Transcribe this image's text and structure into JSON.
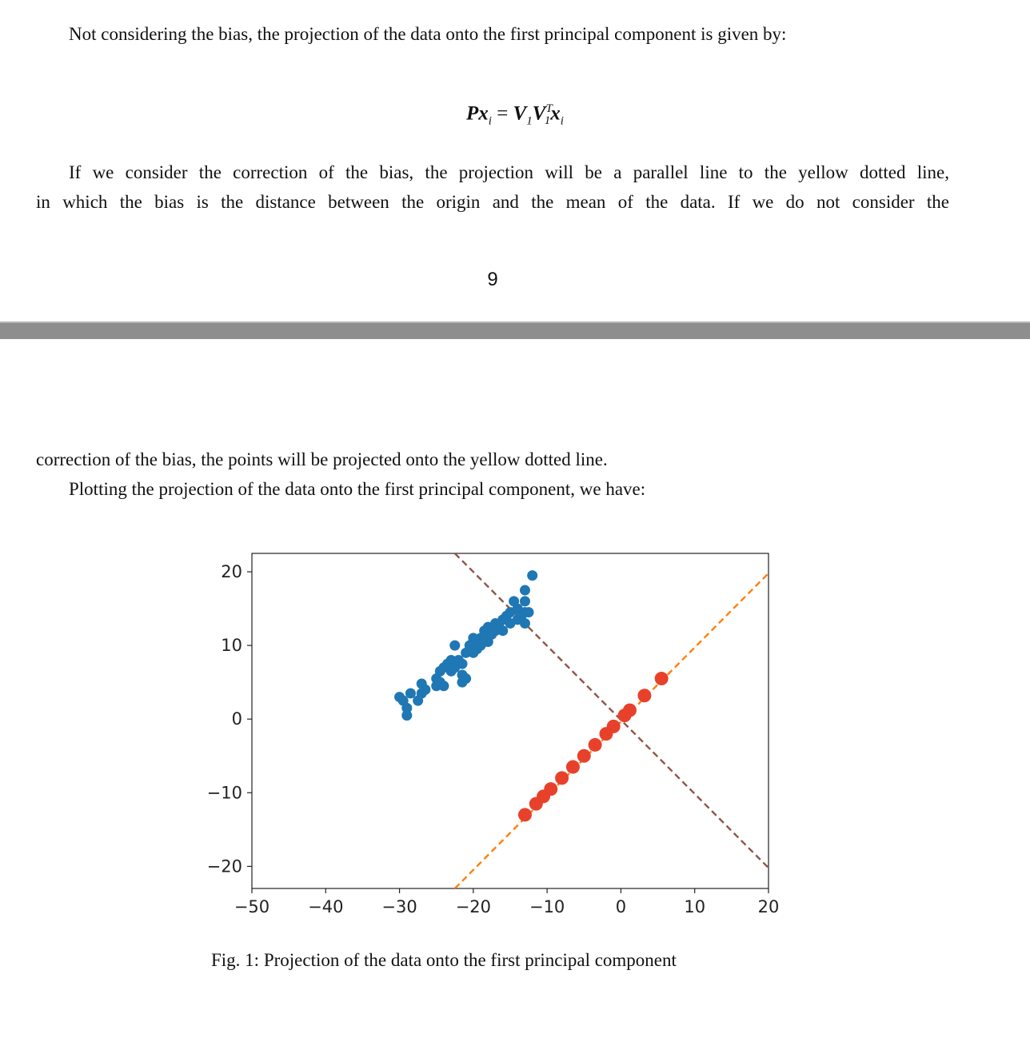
{
  "page_top": {
    "line1": "Not considering the bias, the projection of the data onto the first principal component is given by:",
    "equation": {
      "lhs": "Px",
      "lhs_sub": "i",
      "equals": "=",
      "v1": "V",
      "v1_sub": "1",
      "v2": "V",
      "v2_sup": "T",
      "v2_sub": "1",
      "x": "x",
      "x_sub": "i"
    },
    "para2_line1": "If we consider the correction of the bias, the projection will be a parallel line to the yellow dotted line,",
    "para2_line2": "in which the bias is the distance between the origin and the mean of the data. If we do not consider the",
    "page_number": "9"
  },
  "page_bottom": {
    "para2_cont": "correction of the bias, the points will be projected onto the yellow dotted line.",
    "para3": "Plotting the projection of the data onto the first principal component, we have:",
    "caption": "Fig. 1: Projection of the data onto the first principal component"
  },
  "chart_data": {
    "type": "scatter",
    "xlim": [
      -50,
      20
    ],
    "ylim": [
      -23,
      22.5
    ],
    "xticks": [
      -50,
      -40,
      -30,
      -20,
      -10,
      0,
      10,
      20
    ],
    "yticks": [
      -20,
      -10,
      0,
      10,
      20
    ],
    "xtick_labels": [
      "−50",
      "−40",
      "−30",
      "−20",
      "−10",
      "0",
      "10",
      "20"
    ],
    "ytick_labels": [
      "−20",
      "−10",
      "0",
      "10",
      "20"
    ],
    "grid": false,
    "colors": {
      "data": "#1f77b4",
      "projection": "#e8412b",
      "pc1_line": "#ff7f0e",
      "pc2_line": "#8c564b"
    },
    "lines": [
      {
        "style": "dashed",
        "color": "#ff7f0e",
        "points": [
          [
            -22.5,
            -23
          ],
          [
            20,
            19.8
          ]
        ]
      },
      {
        "style": "dashed",
        "color": "#8c564b",
        "points": [
          [
            -22.5,
            22.5
          ],
          [
            20,
            -20.2
          ]
        ]
      }
    ],
    "series": [
      {
        "marker": "dot",
        "color": "#1f77b4",
        "points": [
          [
            -30,
            3
          ],
          [
            -29.5,
            2.5
          ],
          [
            -28.5,
            3.5
          ],
          [
            -29,
            1.5
          ],
          [
            -29,
            0.5
          ],
          [
            -27,
            4.8
          ],
          [
            -27,
            3.5
          ],
          [
            -27.5,
            2.5
          ],
          [
            -26.5,
            4
          ],
          [
            -25,
            5.5
          ],
          [
            -25,
            4.5
          ],
          [
            -24.5,
            5
          ],
          [
            -24.5,
            6.5
          ],
          [
            -24,
            7
          ],
          [
            -23.5,
            7.5
          ],
          [
            -23,
            6.5
          ],
          [
            -23,
            8
          ],
          [
            -22.5,
            7
          ],
          [
            -22,
            8
          ],
          [
            -21.5,
            7.5
          ],
          [
            -21.5,
            6
          ],
          [
            -21,
            5.5
          ],
          [
            -21,
            9
          ],
          [
            -20.5,
            10
          ],
          [
            -20,
            10.5
          ],
          [
            -20,
            9
          ],
          [
            -19.5,
            9.5
          ],
          [
            -19,
            10
          ],
          [
            -19,
            11
          ],
          [
            -18.5,
            12
          ],
          [
            -18,
            10.5
          ],
          [
            -18,
            12.5
          ],
          [
            -17.5,
            11.5
          ],
          [
            -17,
            12
          ],
          [
            -17,
            13
          ],
          [
            -16.5,
            12.5
          ],
          [
            -16,
            13.5
          ],
          [
            -16,
            12
          ],
          [
            -15.5,
            14
          ],
          [
            -15,
            13
          ],
          [
            -15,
            14.5
          ],
          [
            -14.5,
            16
          ],
          [
            -14,
            15
          ],
          [
            -14,
            13.5
          ],
          [
            -13.5,
            14
          ],
          [
            -13,
            13
          ],
          [
            -13,
            14.5
          ],
          [
            -12.5,
            14.5
          ],
          [
            -13,
            16
          ],
          [
            -13,
            17.5
          ],
          [
            -12,
            19.5
          ],
          [
            -24,
            4.5
          ],
          [
            -22.5,
            10
          ],
          [
            -21.5,
            5
          ],
          [
            -20,
            11
          ],
          [
            -18.5,
            11
          ]
        ]
      },
      {
        "marker": "dot",
        "color": "#e8412b",
        "points": [
          [
            -13,
            -13
          ],
          [
            -11.5,
            -11.5
          ],
          [
            -10.5,
            -10.5
          ],
          [
            -9.5,
            -9.5
          ],
          [
            -8,
            -8
          ],
          [
            -6.5,
            -6.5
          ],
          [
            -5,
            -5
          ],
          [
            -3.5,
            -3.5
          ],
          [
            -2,
            -2
          ],
          [
            -1,
            -1
          ],
          [
            0.5,
            0.5
          ],
          [
            1.2,
            1.2
          ],
          [
            3.2,
            3.2
          ],
          [
            5.5,
            5.5
          ]
        ]
      }
    ]
  }
}
